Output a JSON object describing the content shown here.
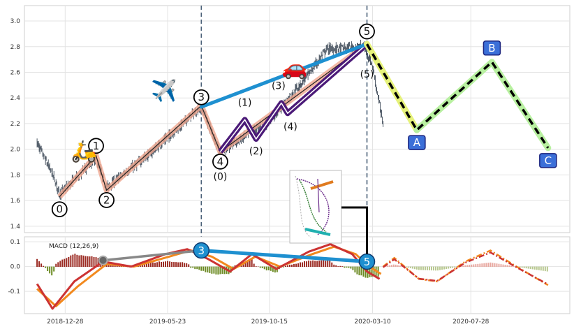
{
  "chart_data": [
    {
      "type": "candlestick",
      "panel": "price",
      "ylim": [
        1.35,
        3.12
      ],
      "yticks": [
        "1.4",
        "1.6",
        "1.8",
        "2.0",
        "2.2",
        "2.4",
        "2.6",
        "2.8",
        "3.0"
      ],
      "xticks": [
        "2018-12-28",
        "2019-05-23",
        "2019-10-15",
        "2020-03-10",
        "2020-07-28"
      ],
      "grid": true,
      "price_path": [
        {
          "date": "2018-11-18",
          "value": 2.05
        },
        {
          "date": "2018-12-12",
          "value": 1.78
        },
        {
          "date": "2018-12-20",
          "value": 1.65
        },
        {
          "date": "2019-02-10",
          "value": 1.93
        },
        {
          "date": "2019-02-25",
          "value": 1.7
        },
        {
          "date": "2019-05-01",
          "value": 1.98
        },
        {
          "date": "2019-07-10",
          "value": 2.33
        },
        {
          "date": "2019-08-06",
          "value": 1.98
        },
        {
          "date": "2019-10-15",
          "value": 2.22
        },
        {
          "date": "2019-12-05",
          "value": 2.55
        },
        {
          "date": "2020-01-05",
          "value": 2.78
        },
        {
          "date": "2020-02-28",
          "value": 2.8
        },
        {
          "date": "2020-03-10",
          "value": 2.65
        },
        {
          "date": "2020-03-25",
          "value": 2.2
        }
      ],
      "waves": {
        "labels": [
          "0",
          "1",
          "2",
          "3",
          "4",
          "5"
        ],
        "points": [
          {
            "date": "2018-12-20",
            "value": 1.63
          },
          {
            "date": "2019-02-10",
            "value": 1.95
          },
          {
            "date": "2019-02-25",
            "value": 1.68
          },
          {
            "date": "2019-07-10",
            "value": 2.34
          },
          {
            "date": "2019-08-06",
            "value": 1.98
          },
          {
            "date": "2020-03-02",
            "value": 2.82
          }
        ]
      },
      "subwaves": {
        "labels": [
          "(0)",
          "(1)",
          "(2)",
          "(3)",
          "(4)",
          "(5)"
        ],
        "points": [
          {
            "date": "2019-08-06",
            "value": 1.98
          },
          {
            "date": "2019-09-10",
            "value": 2.23
          },
          {
            "date": "2019-09-26",
            "value": 2.08
          },
          {
            "date": "2019-11-01",
            "value": 2.36
          },
          {
            "date": "2019-11-10",
            "value": 2.28
          },
          {
            "date": "2020-03-02",
            "value": 2.82
          }
        ]
      },
      "corrective": {
        "labels": [
          "A",
          "B",
          "C"
        ],
        "points": [
          {
            "date": "2020-03-02",
            "value": 2.82
          },
          {
            "date": "2020-05-12",
            "value": 2.15
          },
          {
            "date": "2020-08-27",
            "value": 2.68
          },
          {
            "date": "2020-11-15",
            "value": 2.01
          }
        ]
      },
      "trendline": [
        {
          "date": "2019-07-10",
          "value": 2.33
        },
        {
          "date": "2020-03-02",
          "value": 2.82
        }
      ],
      "vlines": [
        "2019-07-10",
        "2020-03-02"
      ],
      "icons": [
        "scooter-icon",
        "airplane-icon",
        "car-icon"
      ],
      "colors": {
        "candles": "#3a4654",
        "waves": "#f0a890",
        "subwaves": "#4b1a78",
        "trend": "#1e90d0",
        "corrective": "#b8f0a0",
        "boxes": "#3b6fd8",
        "vlines": "#4a6078"
      }
    },
    {
      "type": "line",
      "panel": "macd",
      "title": "MACD (12,26,9)",
      "ylim": [
        -0.19,
        0.12
      ],
      "yticks": [
        "-0.1",
        "0.0",
        "0.1"
      ],
      "grid": true,
      "markers": {
        "labels": [
          "3",
          "5"
        ],
        "points": [
          {
            "date": "2019-07-10",
            "value": 0.065
          },
          {
            "date": "2020-03-02",
            "value": 0.02
          }
        ]
      },
      "grey_line": [
        {
          "date": "2019-02-20",
          "value": 0.025
        },
        {
          "date": "2019-07-10",
          "value": 0.065
        }
      ],
      "macd": [
        {
          "date": "2018-11-18",
          "value": -0.07
        },
        {
          "date": "2018-12-10",
          "value": -0.17
        },
        {
          "date": "2019-01-10",
          "value": -0.06
        },
        {
          "date": "2019-02-20",
          "value": 0.02
        },
        {
          "date": "2019-04-01",
          "value": 0.0
        },
        {
          "date": "2019-05-20",
          "value": 0.05
        },
        {
          "date": "2019-06-20",
          "value": 0.07
        },
        {
          "date": "2019-07-20",
          "value": 0.03
        },
        {
          "date": "2019-08-20",
          "value": -0.02
        },
        {
          "date": "2019-09-20",
          "value": 0.05
        },
        {
          "date": "2019-10-25",
          "value": -0.01
        },
        {
          "date": "2019-12-10",
          "value": 0.06
        },
        {
          "date": "2020-01-10",
          "value": 0.09
        },
        {
          "date": "2020-02-10",
          "value": 0.05
        },
        {
          "date": "2020-03-02",
          "value": -0.02
        },
        {
          "date": "2020-03-20",
          "value": -0.05
        }
      ],
      "signal": [
        {
          "date": "2018-11-18",
          "value": -0.09
        },
        {
          "date": "2018-12-15",
          "value": -0.16
        },
        {
          "date": "2019-01-15",
          "value": -0.08
        },
        {
          "date": "2019-02-25",
          "value": 0.01
        },
        {
          "date": "2019-04-05",
          "value": 0.0
        },
        {
          "date": "2019-05-25",
          "value": 0.04
        },
        {
          "date": "2019-06-25",
          "value": 0.065
        },
        {
          "date": "2019-07-25",
          "value": 0.04
        },
        {
          "date": "2019-08-25",
          "value": -0.01
        },
        {
          "date": "2019-09-25",
          "value": 0.04
        },
        {
          "date": "2019-10-30",
          "value": 0.0
        },
        {
          "date": "2019-12-15",
          "value": 0.05
        },
        {
          "date": "2020-01-15",
          "value": 0.08
        },
        {
          "date": "2020-02-15",
          "value": 0.05
        },
        {
          "date": "2020-03-05",
          "value": 0.0
        },
        {
          "date": "2020-03-22",
          "value": -0.03
        }
      ],
      "projection": [
        {
          "date": "2020-03-25",
          "value": 0.0
        },
        {
          "date": "2020-04-10",
          "value": 0.035
        },
        {
          "date": "2020-05-15",
          "value": -0.05
        },
        {
          "date": "2020-06-10",
          "value": -0.06
        },
        {
          "date": "2020-07-20",
          "value": 0.02
        },
        {
          "date": "2020-08-25",
          "value": 0.065
        },
        {
          "date": "2020-10-01",
          "value": 0.0
        },
        {
          "date": "2020-11-15",
          "value": -0.075
        }
      ],
      "colors": {
        "macd": "#cc3333",
        "signal": "#f2891e",
        "hist_pos": "#9b2a22",
        "hist_neg": "#6b8a22",
        "grey_line": "#888888",
        "markers": "#1e90d0"
      }
    }
  ]
}
